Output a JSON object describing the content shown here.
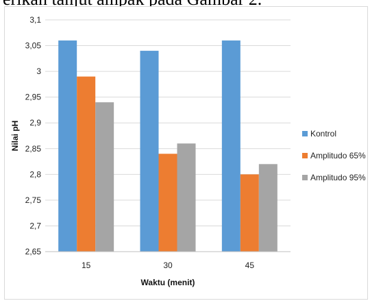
{
  "caption_fragment": "erikan tanjut ampak pada Gambar 2.",
  "chart_data": {
    "type": "bar",
    "title": "",
    "xlabel": "Waktu (menit)",
    "ylabel": "Nilai pH",
    "categories": [
      "15",
      "30",
      "45"
    ],
    "ylim": [
      2.65,
      3.1
    ],
    "yticks": [
      "2,65",
      "2,7",
      "2,75",
      "2,8",
      "2,85",
      "2,9",
      "2,95",
      "3",
      "3,05",
      "3,1"
    ],
    "ytick_values": [
      2.65,
      2.7,
      2.75,
      2.8,
      2.85,
      2.9,
      2.95,
      3.0,
      3.05,
      3.1
    ],
    "grid": true,
    "legend_position": "right",
    "series": [
      {
        "name": "Kontrol",
        "color": "#5b9bd5",
        "values": [
          3.06,
          3.04,
          3.06
        ]
      },
      {
        "name": "Amplitudo 65%",
        "color": "#ed7d31",
        "values": [
          2.99,
          2.84,
          2.8
        ]
      },
      {
        "name": "Amplitudo 95%",
        "color": "#a5a5a5",
        "values": [
          2.94,
          2.86,
          2.82
        ]
      }
    ]
  }
}
